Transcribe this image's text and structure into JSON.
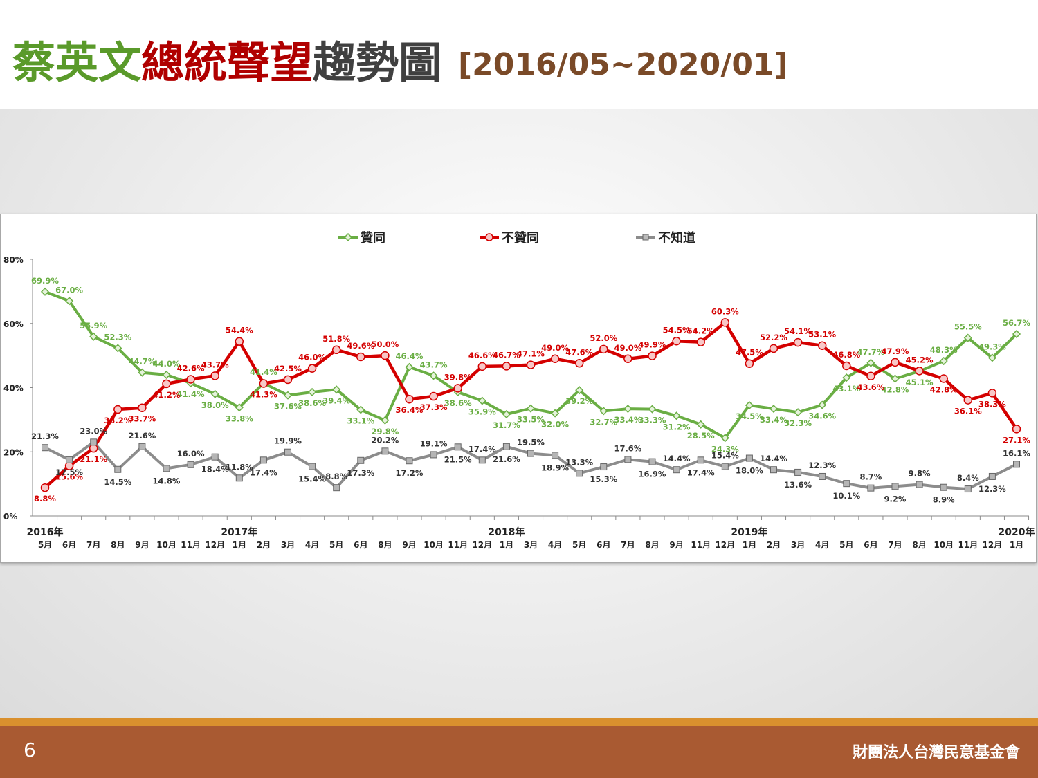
{
  "title": {
    "part1": "蔡英文",
    "part2": "總統聲望",
    "part3": "趨勢圖",
    "range": "[2016/05~2020/01]"
  },
  "colors": {
    "title_green": "#5a9a2a",
    "title_red": "#b00000",
    "title_gray": "#404040",
    "title_brown": "#7a4a28",
    "approve": "#6aae44",
    "disapprove": "#d40000",
    "unknown": "#8c8c8c"
  },
  "footer": {
    "page": "6",
    "org": "財團法人台灣民意基金會"
  },
  "chart_data": {
    "type": "line",
    "legend_position": "top-center",
    "grid": false,
    "ylim": [
      0,
      80
    ],
    "y_ticks": [
      "0%",
      "20%",
      "40%",
      "60%",
      "80%"
    ],
    "months": [
      "5月",
      "6月",
      "7月",
      "8月",
      "9月",
      "10月",
      "11月",
      "12月",
      "1月",
      "2月",
      "3月",
      "4月",
      "5月",
      "6月",
      "8月",
      "9月",
      "10月",
      "11月",
      "12月",
      "1月",
      "3月",
      "4月",
      "5月",
      "6月",
      "7月",
      "8月",
      "9月",
      "11月",
      "12月",
      "1月",
      "2月",
      "3月",
      "4月",
      "5月",
      "6月",
      "7月",
      "8月",
      "10月",
      "11月",
      "12月",
      "1月"
    ],
    "years": [
      {
        "label": "2016年",
        "index": 0
      },
      {
        "label": "2017年",
        "index": 8
      },
      {
        "label": "2018年",
        "index": 19
      },
      {
        "label": "2019年",
        "index": 29
      },
      {
        "label": "2020年",
        "index": 40
      }
    ],
    "series": [
      {
        "name": "贊同",
        "values": [
          69.9,
          67.0,
          55.9,
          52.3,
          44.7,
          44.0,
          41.4,
          38.0,
          33.8,
          41.4,
          37.6,
          38.6,
          39.4,
          33.1,
          29.8,
          46.4,
          43.7,
          38.6,
          35.9,
          31.7,
          33.5,
          32.0,
          39.2,
          32.7,
          33.4,
          33.3,
          31.2,
          28.5,
          24.3,
          34.5,
          33.4,
          32.3,
          34.6,
          43.1,
          47.7,
          42.8,
          45.1,
          48.3,
          55.5,
          49.3,
          56.7
        ]
      },
      {
        "name": "不贊同",
        "values": [
          8.8,
          15.6,
          21.1,
          33.2,
          33.7,
          41.2,
          42.6,
          43.7,
          54.4,
          41.3,
          42.5,
          46.0,
          51.8,
          49.6,
          50.0,
          36.4,
          37.3,
          39.8,
          46.6,
          46.7,
          47.1,
          49.0,
          47.6,
          52.0,
          49.0,
          49.9,
          54.5,
          54.2,
          60.3,
          47.5,
          52.2,
          54.1,
          53.1,
          46.8,
          43.6,
          47.9,
          45.2,
          42.8,
          36.1,
          38.3,
          27.1
        ]
      },
      {
        "name": "不知道",
        "values": [
          21.3,
          17.5,
          23.0,
          14.5,
          21.6,
          14.8,
          16.0,
          18.4,
          11.8,
          17.4,
          19.9,
          15.4,
          8.8,
          17.3,
          20.2,
          17.2,
          19.1,
          21.5,
          17.4,
          21.6,
          19.5,
          18.9,
          13.3,
          15.3,
          17.6,
          16.9,
          14.4,
          17.4,
          15.4,
          18.0,
          14.4,
          13.6,
          12.3,
          10.1,
          8.7,
          9.2,
          9.8,
          8.9,
          8.4,
          12.3,
          16.1
        ]
      }
    ]
  }
}
